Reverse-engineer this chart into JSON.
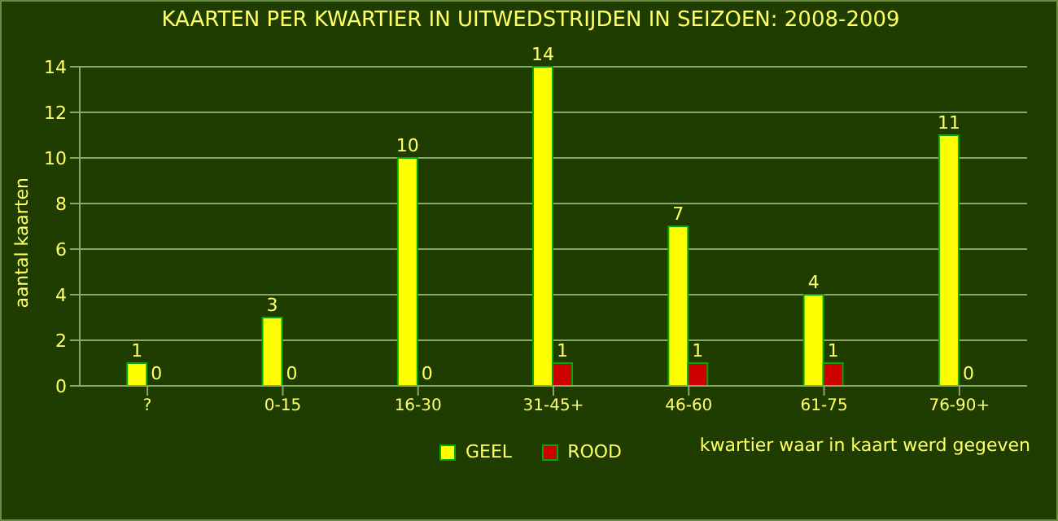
{
  "chart_data": {
    "type": "bar",
    "title": "KAARTEN PER KWARTIER IN UITWEDSTRIJDEN IN SEIZOEN: 2008-2009",
    "xlabel": "kwartier waar in kaart werd gegeven",
    "ylabel": "aantal kaarten",
    "categories": [
      "?",
      "0-15",
      "16-30",
      "31-45+",
      "46-60",
      "61-75",
      "76-90+"
    ],
    "series": [
      {
        "name": "GEEL",
        "color": "#ffff00",
        "values": [
          1,
          3,
          10,
          14,
          7,
          4,
          11
        ]
      },
      {
        "name": "ROOD",
        "color": "#cc0000",
        "values": [
          0,
          0,
          0,
          1,
          1,
          1,
          0
        ]
      }
    ],
    "ylim": [
      0,
      14
    ],
    "yticks": [
      0,
      2,
      4,
      6,
      8,
      10,
      12,
      14
    ],
    "grid": "y",
    "legend": "bottom",
    "data_labels": true
  }
}
